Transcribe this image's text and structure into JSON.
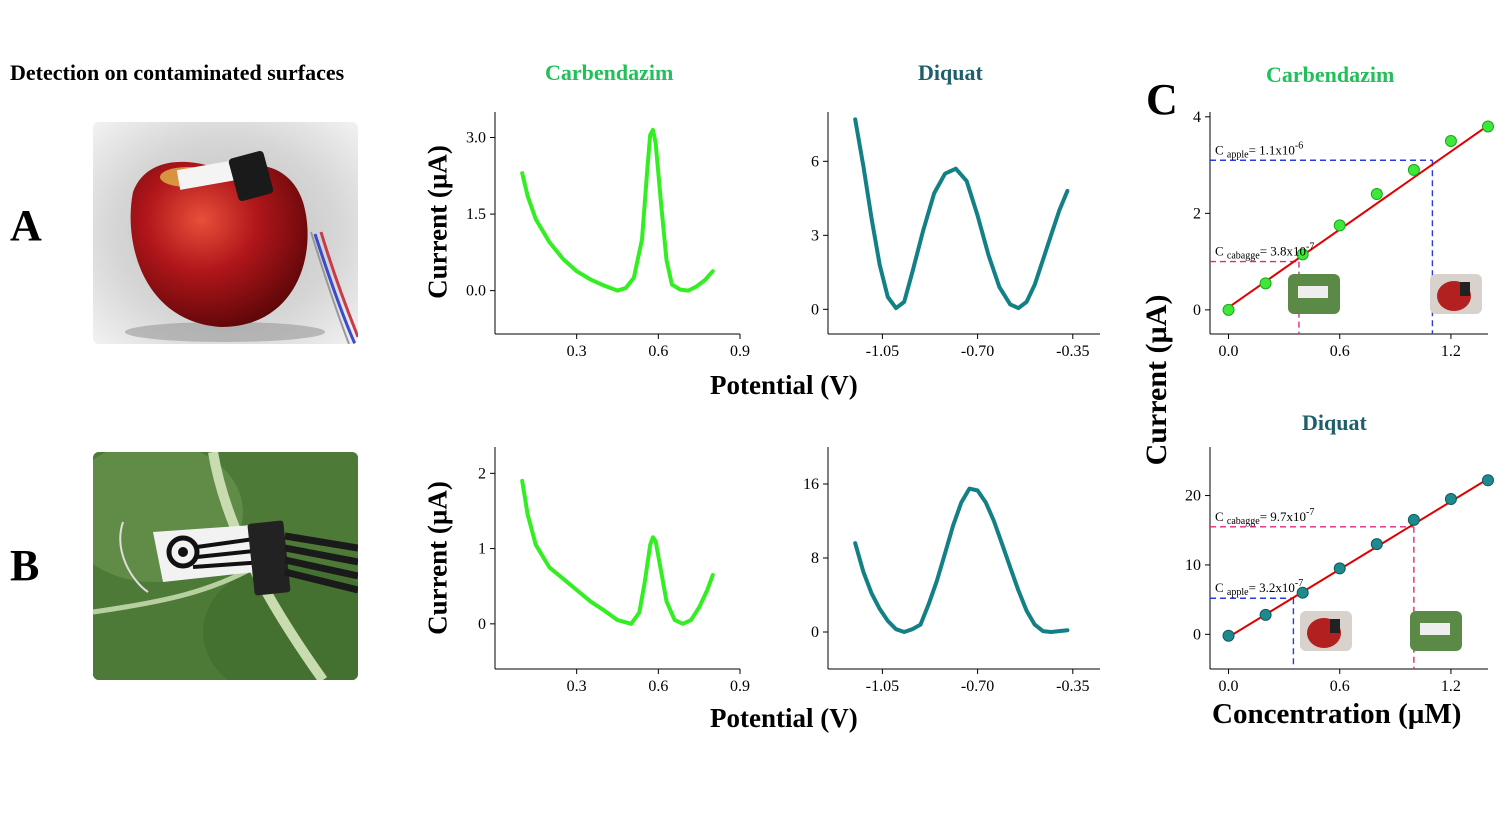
{
  "header": {
    "heading": "Detection on contaminated surfaces"
  },
  "panels": {
    "a": "A",
    "b": "B",
    "c": "C"
  },
  "colors": {
    "carbendazim": "#33ee22",
    "diquat": "#128084",
    "fit": "#e00000",
    "pink": "#e4287a",
    "blue": "#2a3be0",
    "title_green": "#22c05a",
    "title_teal": "#1e5f6b"
  },
  "icons": {
    "apple_photo": "apple-photo",
    "cabbage_photo": "cabbage-leaf-photo",
    "sensor": "screen-printed-electrode"
  },
  "chart_data": [
    {
      "id": "a-carbendazim",
      "type": "line",
      "title": "Carbendazim",
      "xlabel": "",
      "ylabel": "Current (µA)",
      "xlim": [
        0.0,
        0.9
      ],
      "ylim": [
        -0.85,
        3.5
      ],
      "xticks": [
        0.3,
        0.6,
        0.9
      ],
      "yticks": [
        0.0,
        1.5,
        3.0
      ],
      "xtick_labels": [
        "0.3",
        "0.6",
        "0.9"
      ],
      "ytick_labels": [
        "0.0",
        "1.5",
        "3.0"
      ],
      "series": [
        {
          "x": [
            0.1,
            0.12,
            0.15,
            0.2,
            0.25,
            0.3,
            0.35,
            0.4,
            0.45,
            0.48,
            0.51,
            0.54,
            0.56,
            0.57,
            0.58,
            0.59,
            0.61,
            0.63,
            0.65,
            0.68,
            0.71,
            0.74,
            0.77,
            0.8
          ],
          "y": [
            2.3,
            1.85,
            1.4,
            0.95,
            0.62,
            0.38,
            0.22,
            0.1,
            0.0,
            0.05,
            0.25,
            1.0,
            2.4,
            3.05,
            3.15,
            2.9,
            1.7,
            0.6,
            0.12,
            0.02,
            0.0,
            0.08,
            0.2,
            0.38
          ]
        }
      ]
    },
    {
      "id": "a-diquat",
      "type": "line",
      "title": "Diquat",
      "xlabel": "",
      "ylabel": "",
      "xlim": [
        -1.25,
        -0.25
      ],
      "ylim": [
        -1.0,
        8.0
      ],
      "xticks": [
        -1.05,
        -0.7,
        -0.35
      ],
      "yticks": [
        0,
        3,
        6
      ],
      "xtick_labels": [
        "-1.05",
        "-0.70",
        "-0.35"
      ],
      "ytick_labels": [
        "0",
        "3",
        "6"
      ],
      "series": [
        {
          "x": [
            -1.15,
            -1.12,
            -1.09,
            -1.06,
            -1.03,
            -1.0,
            -0.97,
            -0.94,
            -0.9,
            -0.86,
            -0.82,
            -0.78,
            -0.74,
            -0.7,
            -0.66,
            -0.62,
            -0.58,
            -0.55,
            -0.52,
            -0.49,
            -0.46,
            -0.43,
            -0.4,
            -0.37
          ],
          "y": [
            7.7,
            5.8,
            3.7,
            1.8,
            0.5,
            0.05,
            0.3,
            1.5,
            3.2,
            4.7,
            5.5,
            5.7,
            5.2,
            3.8,
            2.2,
            0.9,
            0.2,
            0.05,
            0.3,
            1.0,
            2.0,
            3.0,
            4.0,
            4.8
          ]
        }
      ]
    },
    {
      "id": "b-carbendazim",
      "type": "line",
      "title": "",
      "xlabel": "",
      "ylabel": "Current (µA)",
      "xlim": [
        0.0,
        0.9
      ],
      "ylim": [
        -0.6,
        2.35
      ],
      "xticks": [
        0.3,
        0.6,
        0.9
      ],
      "yticks": [
        0,
        1,
        2
      ],
      "xtick_labels": [
        "0.3",
        "0.6",
        "0.9"
      ],
      "ytick_labels": [
        "0",
        "1",
        "2"
      ],
      "series": [
        {
          "x": [
            0.1,
            0.12,
            0.15,
            0.2,
            0.25,
            0.3,
            0.35,
            0.4,
            0.45,
            0.5,
            0.53,
            0.55,
            0.57,
            0.58,
            0.59,
            0.61,
            0.63,
            0.66,
            0.69,
            0.72,
            0.75,
            0.78,
            0.8
          ],
          "y": [
            1.9,
            1.45,
            1.05,
            0.75,
            0.6,
            0.45,
            0.3,
            0.18,
            0.05,
            0.0,
            0.15,
            0.55,
            1.05,
            1.15,
            1.1,
            0.7,
            0.3,
            0.05,
            0.0,
            0.05,
            0.22,
            0.45,
            0.65
          ]
        }
      ]
    },
    {
      "id": "b-diquat",
      "type": "line",
      "title": "",
      "xlabel": "",
      "ylabel": "",
      "xlim": [
        -1.25,
        -0.25
      ],
      "ylim": [
        -4.0,
        20.0
      ],
      "xticks": [
        -1.05,
        -0.7,
        -0.35
      ],
      "yticks": [
        0,
        8,
        16
      ],
      "xtick_labels": [
        "-1.05",
        "-0.70",
        "-0.35"
      ],
      "ytick_labels": [
        "0",
        "8",
        "16"
      ],
      "series": [
        {
          "x": [
            -1.15,
            -1.12,
            -1.09,
            -1.06,
            -1.03,
            -1.0,
            -0.97,
            -0.94,
            -0.91,
            -0.88,
            -0.85,
            -0.82,
            -0.79,
            -0.76,
            -0.73,
            -0.7,
            -0.67,
            -0.64,
            -0.61,
            -0.58,
            -0.55,
            -0.52,
            -0.49,
            -0.46,
            -0.43,
            -0.4,
            -0.37
          ],
          "y": [
            9.6,
            6.5,
            4.2,
            2.5,
            1.2,
            0.3,
            0.0,
            0.3,
            0.8,
            3.0,
            5.5,
            8.5,
            11.5,
            14.0,
            15.5,
            15.3,
            14.0,
            12.0,
            9.5,
            7.0,
            4.5,
            2.3,
            0.8,
            0.1,
            0.0,
            0.1,
            0.2
          ]
        }
      ]
    },
    {
      "id": "c-carbendazim",
      "type": "scatter",
      "title": "Carbendazim",
      "xlabel": "",
      "ylabel": "",
      "xlim": [
        -0.1,
        1.4
      ],
      "ylim": [
        -0.5,
        4.1
      ],
      "xticks": [
        0.0,
        0.6,
        1.2
      ],
      "yticks": [
        0,
        2,
        4
      ],
      "xtick_labels": [
        "0.0",
        "0.6",
        "1.2"
      ],
      "ytick_labels": [
        "0",
        "2",
        "4"
      ],
      "points": {
        "x": [
          0.0,
          0.2,
          0.4,
          0.6,
          0.8,
          1.0,
          1.2,
          1.4
        ],
        "y": [
          0.0,
          0.55,
          1.15,
          1.75,
          2.4,
          2.9,
          3.5,
          3.8
        ]
      },
      "fit": {
        "x": [
          0.0,
          1.4
        ],
        "y": [
          0.05,
          3.82
        ]
      },
      "annotations": [
        {
          "label": "C",
          "sub": "apple",
          "eq": "= 1.1x10",
          "sup": "-6",
          "x": 1.1,
          "y": 3.1,
          "color": "blue"
        },
        {
          "label": "C",
          "sub": "cabagge",
          "eq": "= 3.8x10",
          "sup": "-7",
          "x": 0.38,
          "y": 1.0,
          "color": "pink"
        }
      ]
    },
    {
      "id": "c-diquat",
      "type": "scatter",
      "title": "Diquat",
      "xlabel": "Concentration (µM)",
      "ylabel": "",
      "xlim": [
        -0.1,
        1.4
      ],
      "ylim": [
        -5.0,
        27.0
      ],
      "xticks": [
        0.0,
        0.6,
        1.2
      ],
      "yticks": [
        0,
        10,
        20
      ],
      "xtick_labels": [
        "0.0",
        "0.6",
        "1.2"
      ],
      "ytick_labels": [
        "0",
        "10",
        "20"
      ],
      "points": {
        "x": [
          0.0,
          0.2,
          0.4,
          0.6,
          0.8,
          1.0,
          1.2,
          1.4
        ],
        "y": [
          -0.2,
          2.8,
          6.0,
          9.5,
          13.0,
          16.5,
          19.5,
          22.2
        ]
      },
      "fit": {
        "x": [
          0.0,
          1.4
        ],
        "y": [
          -0.4,
          22.4
        ]
      },
      "annotations": [
        {
          "label": "C",
          "sub": "cabagge",
          "eq": "= 9.7x10",
          "sup": "-7",
          "x": 1.0,
          "y": 15.5,
          "color": "pink"
        },
        {
          "label": "C",
          "sub": "apple",
          "eq": "= 3.2x10",
          "sup": "-7",
          "x": 0.35,
          "y": 5.2,
          "color": "blue"
        }
      ]
    }
  ],
  "shared_labels": {
    "potential": "Potential (V)",
    "current": "Current (µA)",
    "concentration": "Concentration (µM)"
  }
}
